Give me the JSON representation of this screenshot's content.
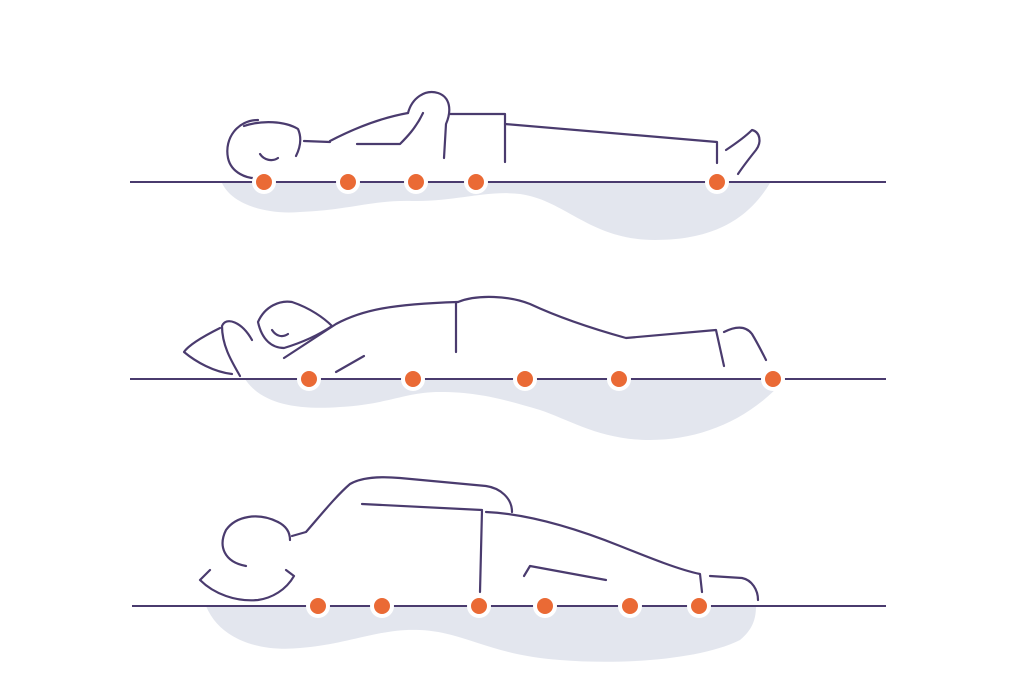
{
  "illustration": {
    "subject": "sleeping-positions-mattress-pressure-points",
    "colors": {
      "outline": "#4a3b6e",
      "pressure_point": "#ea6a35",
      "pressure_point_ring": "#ffffff",
      "mattress_sink": "#e3e6ee",
      "surface_line": "#4a3b6e",
      "background": "#ffffff"
    },
    "rows": [
      {
        "position": "back-sleeper",
        "pressure_points": 5
      },
      {
        "position": "side-sleeper",
        "pressure_points": 5
      },
      {
        "position": "stomach-sleeper",
        "pressure_points": 6
      }
    ]
  }
}
